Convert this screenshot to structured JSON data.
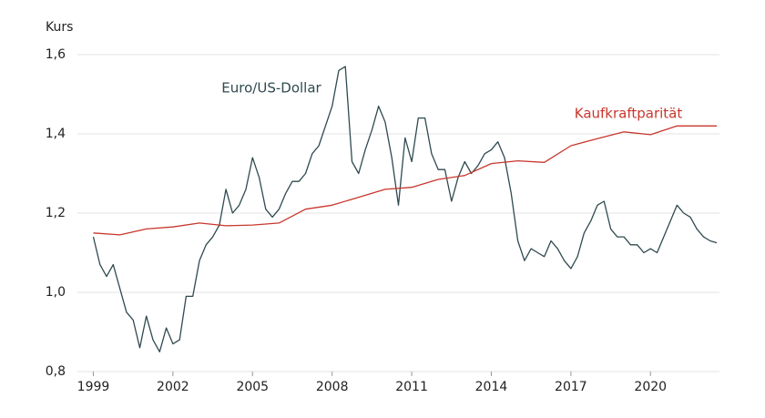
{
  "chart_data": {
    "type": "line",
    "ylabel": "Kurs",
    "xlim": [
      1998.4,
      2022.6
    ],
    "xticks": [
      1999,
      2002,
      2005,
      2008,
      2011,
      2014,
      2017,
      2020
    ],
    "ylim": [
      0.8,
      1.6
    ],
    "yticks": [
      {
        "value": 0.8,
        "label": "0,8"
      },
      {
        "value": 1.0,
        "label": "1,0"
      },
      {
        "value": 1.2,
        "label": "1,2"
      },
      {
        "value": 1.4,
        "label": "1,4"
      },
      {
        "value": 1.6,
        "label": "1,6"
      }
    ],
    "grid": true,
    "series": [
      {
        "name": "Euro/US-Dollar",
        "color": "#2f4a4f",
        "x": [
          1999.0,
          1999.25,
          1999.5,
          1999.75,
          2000.0,
          2000.25,
          2000.5,
          2000.75,
          2001.0,
          2001.25,
          2001.5,
          2001.75,
          2002.0,
          2002.25,
          2002.5,
          2002.75,
          2003.0,
          2003.25,
          2003.5,
          2003.75,
          2004.0,
          2004.25,
          2004.5,
          2004.75,
          2005.0,
          2005.25,
          2005.5,
          2005.75,
          2006.0,
          2006.25,
          2006.5,
          2006.75,
          2007.0,
          2007.25,
          2007.5,
          2007.75,
          2008.0,
          2008.25,
          2008.5,
          2008.75,
          2009.0,
          2009.25,
          2009.5,
          2009.75,
          2010.0,
          2010.25,
          2010.5,
          2010.75,
          2011.0,
          2011.25,
          2011.5,
          2011.75,
          2012.0,
          2012.25,
          2012.5,
          2012.75,
          2013.0,
          2013.25,
          2013.5,
          2013.75,
          2014.0,
          2014.25,
          2014.5,
          2014.75,
          2015.0,
          2015.25,
          2015.5,
          2015.75,
          2016.0,
          2016.25,
          2016.5,
          2016.75,
          2017.0,
          2017.25,
          2017.5,
          2017.75,
          2018.0,
          2018.25,
          2018.5,
          2018.75,
          2019.0,
          2019.25,
          2019.5,
          2019.75,
          2020.0,
          2020.25,
          2020.5,
          2020.75,
          2021.0,
          2021.25,
          2021.5,
          2021.75,
          2022.0,
          2022.25,
          2022.5
        ],
        "values": [
          1.14,
          1.07,
          1.04,
          1.07,
          1.01,
          0.95,
          0.93,
          0.86,
          0.94,
          0.88,
          0.85,
          0.91,
          0.87,
          0.88,
          0.99,
          0.99,
          1.08,
          1.12,
          1.14,
          1.17,
          1.26,
          1.2,
          1.22,
          1.26,
          1.34,
          1.29,
          1.21,
          1.19,
          1.21,
          1.25,
          1.28,
          1.28,
          1.3,
          1.35,
          1.37,
          1.42,
          1.47,
          1.56,
          1.57,
          1.33,
          1.3,
          1.36,
          1.41,
          1.47,
          1.43,
          1.34,
          1.22,
          1.39,
          1.33,
          1.44,
          1.44,
          1.35,
          1.31,
          1.31,
          1.23,
          1.29,
          1.33,
          1.3,
          1.32,
          1.35,
          1.36,
          1.38,
          1.34,
          1.25,
          1.13,
          1.08,
          1.11,
          1.1,
          1.09,
          1.13,
          1.11,
          1.08,
          1.06,
          1.09,
          1.15,
          1.18,
          1.22,
          1.23,
          1.16,
          1.14,
          1.14,
          1.12,
          1.12,
          1.1,
          1.11,
          1.1,
          1.14,
          1.18,
          1.22,
          1.2,
          1.19,
          1.16,
          1.14,
          1.13,
          1.125
        ]
      },
      {
        "name": "Kaufkraftparität",
        "color": "#c8372d",
        "x": [
          1999,
          2000,
          2001,
          2002,
          2003,
          2004,
          2005,
          2006,
          2007,
          2008,
          2009,
          2010,
          2011,
          2012,
          2013,
          2014,
          2015,
          2016,
          2017,
          2018,
          2019,
          2020,
          2021,
          2022.5
        ],
        "values": [
          1.15,
          1.145,
          1.16,
          1.165,
          1.175,
          1.168,
          1.17,
          1.175,
          1.21,
          1.22,
          1.24,
          1.26,
          1.265,
          1.285,
          1.295,
          1.325,
          1.332,
          1.328,
          1.37,
          1.388,
          1.405,
          1.398,
          1.42,
          1.42
        ]
      }
    ]
  }
}
